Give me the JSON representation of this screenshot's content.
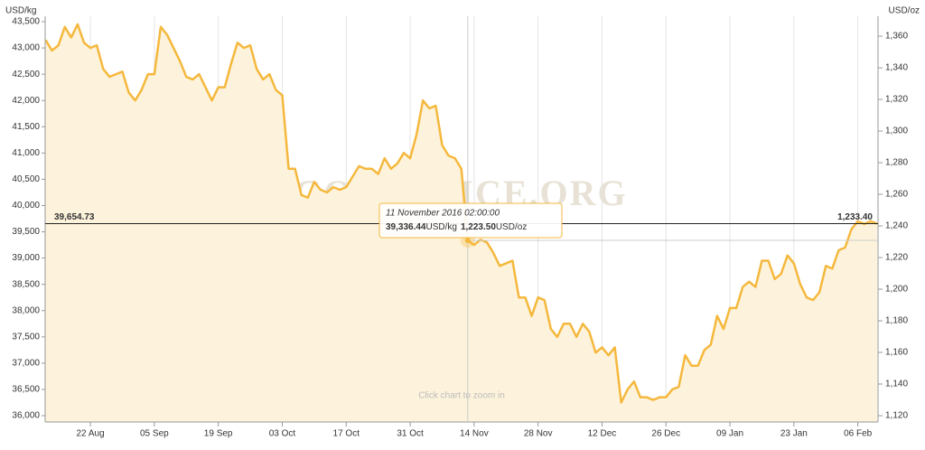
{
  "chart_data": {
    "type": "line",
    "y_axis_label": "USD/kg",
    "y2_axis_label": "USD/oz",
    "watermark": "GOLDPRICE.ORG",
    "hint": "Click chart to zoom in",
    "categories": [
      null,
      null,
      null,
      null,
      null,
      null,
      null,
      "22 Aug",
      null,
      null,
      null,
      null,
      null,
      null,
      null,
      null,
      null,
      "05 Sep",
      null,
      null,
      null,
      null,
      null,
      null,
      null,
      null,
      null,
      "19 Sep",
      null,
      null,
      null,
      null,
      null,
      null,
      null,
      null,
      null,
      "03 Oct",
      null,
      null,
      null,
      null,
      null,
      null,
      null,
      null,
      null,
      "17 Oct",
      null,
      null,
      null,
      null,
      null,
      null,
      null,
      null,
      null,
      "31 Oct",
      null,
      null,
      null,
      null,
      null,
      null,
      null,
      null,
      null,
      "14 Nov",
      null,
      null,
      null,
      null,
      null,
      null,
      null,
      null,
      null,
      "28 Nov",
      null,
      null,
      null,
      null,
      null,
      null,
      null,
      null,
      null,
      "12 Dec",
      null,
      null,
      null,
      null,
      null,
      null,
      null,
      null,
      null,
      "26 Dec",
      null,
      null,
      null,
      null,
      null,
      null,
      null,
      null,
      null,
      "09 Jan",
      null,
      null,
      null,
      null,
      null,
      null,
      null,
      null,
      null,
      "23 Jan",
      null,
      null,
      null,
      null,
      null,
      null,
      null,
      null,
      null,
      "06 Feb",
      null,
      null,
      null
    ],
    "series": [
      {
        "name": "USD/kg",
        "color": "#f5b83d",
        "fill": "#fdf3dc",
        "values": [
          43150,
          42950,
          43050,
          43400,
          43200,
          43450,
          43100,
          43000,
          43050,
          42600,
          42450,
          42500,
          42550,
          42150,
          42000,
          42200,
          42500,
          42500,
          43400,
          43250,
          43000,
          42750,
          42450,
          42400,
          42500,
          42250,
          42000,
          42250,
          42250,
          42700,
          43100,
          43000,
          43050,
          42600,
          42400,
          42500,
          42200,
          42100,
          40700,
          40700,
          40200,
          40150,
          40450,
          40300,
          40250,
          40350,
          40300,
          40350,
          40550,
          40750,
          40700,
          40700,
          40600,
          40900,
          40700,
          40800,
          41000,
          40900,
          41350,
          42000,
          41850,
          41900,
          41150,
          40950,
          40900,
          40700,
          39336.44,
          39250,
          39350,
          39300,
          39100,
          38850,
          38900,
          38950,
          38250,
          38250,
          37900,
          38250,
          38200,
          37650,
          37500,
          37750,
          37750,
          37500,
          37750,
          37600,
          37200,
          37300,
          37150,
          37300,
          36250,
          36500,
          36650,
          36350,
          36350,
          36300,
          36350,
          36350,
          36500,
          36550,
          37150,
          36950,
          36950,
          37250,
          37350,
          37900,
          37650,
          38050,
          38050,
          38450,
          38550,
          38450,
          38950,
          38950,
          38600,
          38700,
          39050,
          38900,
          38500,
          38250,
          38200,
          38350,
          38850,
          38800,
          39150,
          39200,
          39550,
          39700,
          39650,
          39700,
          39654.73
        ]
      }
    ],
    "ylim": [
      35880,
      43603
    ],
    "yticks": [
      {
        "value": 36000,
        "label": "36,000"
      },
      {
        "value": 36500,
        "label": "36,500"
      },
      {
        "value": 37000,
        "label": "37,000"
      },
      {
        "value": 37500,
        "label": "37,500"
      },
      {
        "value": 38000,
        "label": "38,000"
      },
      {
        "value": 38500,
        "label": "38,500"
      },
      {
        "value": 39000,
        "label": "39,000"
      },
      {
        "value": 39500,
        "label": "39,500"
      },
      {
        "value": 40000,
        "label": "40,000"
      },
      {
        "value": 40500,
        "label": "40,500"
      },
      {
        "value": 41000,
        "label": "41,000"
      },
      {
        "value": 41500,
        "label": "41,500"
      },
      {
        "value": 42000,
        "label": "42,000"
      },
      {
        "value": 42500,
        "label": "42,500"
      },
      {
        "value": 43000,
        "label": "43,000"
      },
      {
        "value": 43500,
        "label": "43,500"
      }
    ],
    "y2lim": [
      1116,
      1372.6
    ],
    "y2ticks": [
      {
        "value": 1120,
        "label": "1,120"
      },
      {
        "value": 1140,
        "label": "1,140"
      },
      {
        "value": 1160,
        "label": "1,160"
      },
      {
        "value": 1180,
        "label": "1,180"
      },
      {
        "value": 1200,
        "label": "1,200"
      },
      {
        "value": 1220,
        "label": "1,220"
      },
      {
        "value": 1240,
        "label": "1,240"
      },
      {
        "value": 1260,
        "label": "1,260"
      },
      {
        "value": 1280,
        "label": "1,280"
      },
      {
        "value": 1300,
        "label": "1,300"
      },
      {
        "value": 1320,
        "label": "1,320"
      },
      {
        "value": 1340,
        "label": "1,340"
      },
      {
        "value": 1360,
        "label": "1,360"
      }
    ],
    "x_grid": true,
    "current_line": {
      "value": 39654.73,
      "label": "39,654.73",
      "label_oz": "1,233.40"
    },
    "tooltip": {
      "index": 66,
      "date": "11 November 2016 02:00:00",
      "kg": "39,336.44",
      "kg_unit": "USD/kg",
      "oz": "1,223.50",
      "oz_unit": "USD/oz"
    }
  }
}
